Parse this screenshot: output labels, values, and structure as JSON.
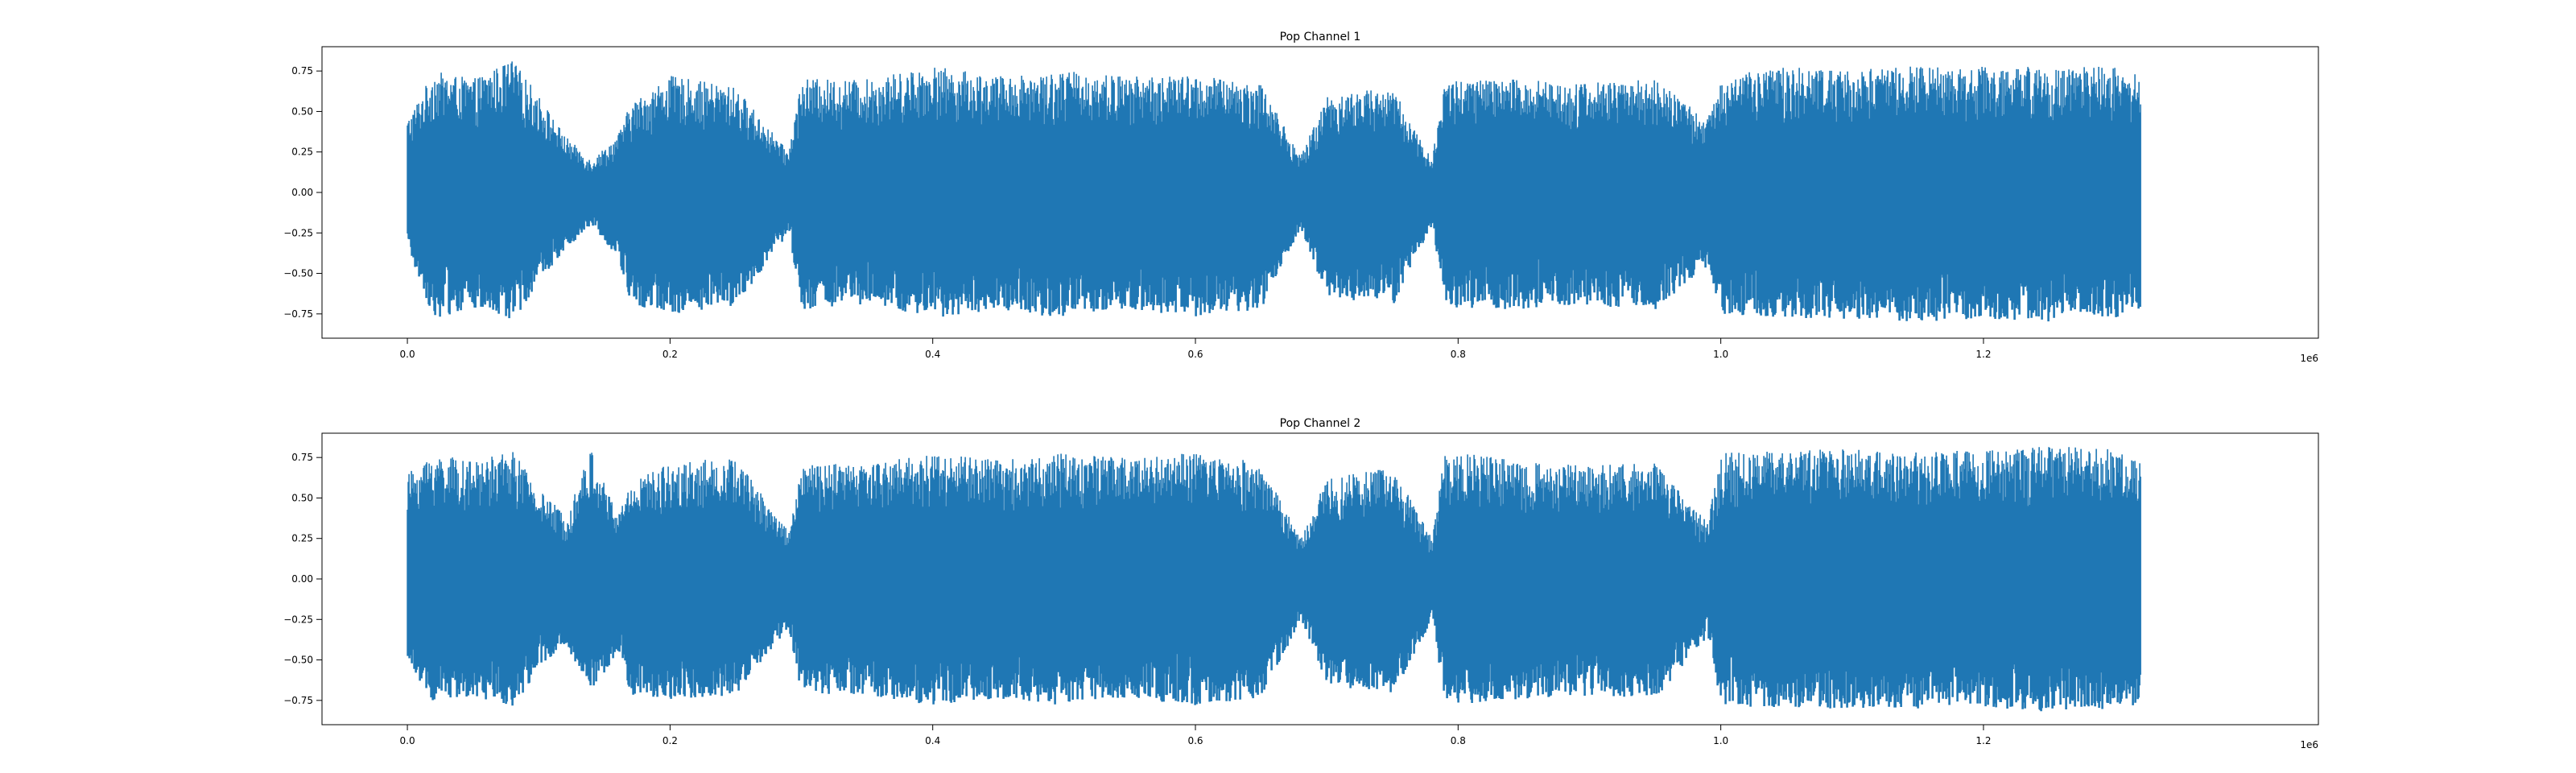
{
  "figure": {
    "background": "#ffffff",
    "series_color": "#1f77b4"
  },
  "chart_data": [
    {
      "type": "line",
      "title": "Pop Channel 1",
      "xlabel": "",
      "ylabel": "",
      "x_offset_label": "1e6",
      "xlim": [
        -0.065,
        1.455
      ],
      "ylim": [
        -0.9,
        0.9
      ],
      "x_ticks": [
        0.0,
        0.2,
        0.4,
        0.6,
        0.8,
        1.0,
        1.2
      ],
      "x_tick_labels": [
        "0.0",
        "0.2",
        "0.4",
        "0.6",
        "0.8",
        "1.0",
        "1.2"
      ],
      "y_ticks": [
        0.75,
        0.5,
        0.25,
        0.0,
        -0.25,
        -0.5,
        -0.75
      ],
      "y_tick_labels": [
        "0.75",
        "0.50",
        "0.25",
        "0.00",
        "−0.25",
        "−0.50",
        "−0.75"
      ],
      "grid": false,
      "legend": "none",
      "x_range_data": [
        0.0,
        1.32
      ],
      "envelope": {
        "x": [
          0.0,
          0.02,
          0.05,
          0.08,
          0.1,
          0.12,
          0.14,
          0.16,
          0.17,
          0.2,
          0.25,
          0.29,
          0.3,
          0.35,
          0.4,
          0.45,
          0.5,
          0.55,
          0.6,
          0.65,
          0.68,
          0.7,
          0.75,
          0.78,
          0.79,
          0.85,
          0.9,
          0.95,
          0.99,
          1.0,
          1.05,
          1.1,
          1.15,
          1.2,
          1.25,
          1.3,
          1.32
        ],
        "upper": [
          0.45,
          0.75,
          0.7,
          0.82,
          0.6,
          0.35,
          0.2,
          0.35,
          0.55,
          0.72,
          0.65,
          0.25,
          0.7,
          0.7,
          0.78,
          0.72,
          0.75,
          0.72,
          0.72,
          0.68,
          0.22,
          0.6,
          0.65,
          0.2,
          0.7,
          0.7,
          0.68,
          0.7,
          0.45,
          0.72,
          0.78,
          0.76,
          0.78,
          0.78,
          0.78,
          0.78,
          0.72
        ],
        "lower": [
          -0.35,
          -0.78,
          -0.72,
          -0.8,
          -0.55,
          -0.35,
          -0.2,
          -0.4,
          -0.7,
          -0.75,
          -0.7,
          -0.25,
          -0.72,
          -0.7,
          -0.78,
          -0.72,
          -0.78,
          -0.72,
          -0.78,
          -0.72,
          -0.22,
          -0.65,
          -0.7,
          -0.2,
          -0.72,
          -0.72,
          -0.7,
          -0.72,
          -0.45,
          -0.75,
          -0.78,
          -0.78,
          -0.8,
          -0.78,
          -0.8,
          -0.78,
          -0.72
        ]
      }
    },
    {
      "type": "line",
      "title": "Pop Channel 2",
      "xlabel": "",
      "ylabel": "",
      "x_offset_label": "1e6",
      "xlim": [
        -0.065,
        1.455
      ],
      "ylim": [
        -0.9,
        0.9
      ],
      "x_ticks": [
        0.0,
        0.2,
        0.4,
        0.6,
        0.8,
        1.0,
        1.2
      ],
      "x_tick_labels": [
        "0.0",
        "0.2",
        "0.4",
        "0.6",
        "0.8",
        "1.0",
        "1.2"
      ],
      "y_ticks": [
        0.75,
        0.5,
        0.25,
        0.0,
        -0.25,
        -0.5,
        -0.75
      ],
      "y_tick_labels": [
        "0.75",
        "0.50",
        "0.25",
        "0.00",
        "−0.25",
        "−0.50",
        "−0.75"
      ],
      "grid": false,
      "legend": "none",
      "x_range_data": [
        0.0,
        1.32
      ],
      "envelope": {
        "x": [
          0.0,
          0.02,
          0.05,
          0.08,
          0.1,
          0.12,
          0.14,
          0.16,
          0.17,
          0.2,
          0.25,
          0.29,
          0.3,
          0.35,
          0.4,
          0.45,
          0.5,
          0.55,
          0.6,
          0.65,
          0.68,
          0.7,
          0.75,
          0.78,
          0.79,
          0.85,
          0.9,
          0.95,
          0.99,
          1.0,
          1.05,
          1.1,
          1.15,
          1.2,
          1.25,
          1.3,
          1.32
        ],
        "upper": [
          0.65,
          0.78,
          0.72,
          0.8,
          0.55,
          0.4,
          0.8,
          0.4,
          0.6,
          0.72,
          0.75,
          0.3,
          0.7,
          0.72,
          0.78,
          0.74,
          0.78,
          0.75,
          0.78,
          0.72,
          0.25,
          0.62,
          0.7,
          0.25,
          0.8,
          0.72,
          0.7,
          0.72,
          0.35,
          0.78,
          0.8,
          0.8,
          0.78,
          0.8,
          0.82,
          0.8,
          0.78
        ],
        "lower": [
          -0.5,
          -0.78,
          -0.72,
          -0.8,
          -0.55,
          -0.4,
          -0.7,
          -0.45,
          -0.72,
          -0.75,
          -0.72,
          -0.3,
          -0.72,
          -0.72,
          -0.78,
          -0.74,
          -0.78,
          -0.74,
          -0.78,
          -0.74,
          -0.25,
          -0.65,
          -0.72,
          -0.25,
          -0.78,
          -0.74,
          -0.72,
          -0.74,
          -0.35,
          -0.78,
          -0.8,
          -0.8,
          -0.8,
          -0.8,
          -0.82,
          -0.8,
          -0.78
        ]
      }
    }
  ]
}
